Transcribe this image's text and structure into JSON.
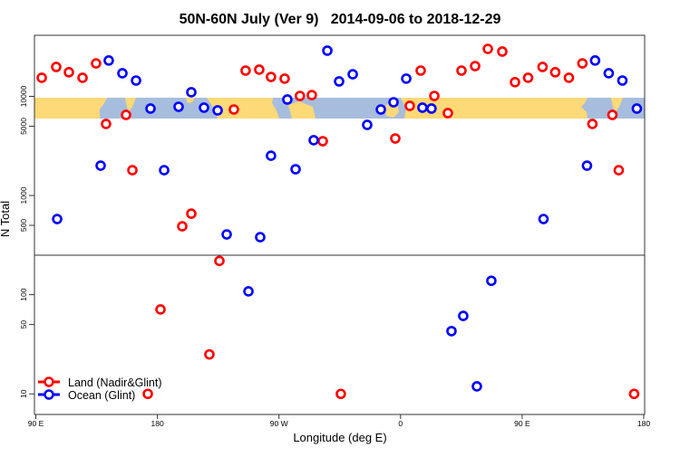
{
  "chart_data": {
    "type": "scatter",
    "title": "50N-60N July (Ver 9)   2014-09-06 to 2018-12-29",
    "xlabel": "Longitude (deg E)",
    "ylabel": "N Total",
    "x_range_deg": [
      90,
      540
    ],
    "x_ticks": [
      {
        "lon": 90,
        "label": "90 E"
      },
      {
        "lon": 180,
        "label": "180"
      },
      {
        "lon": 270,
        "label": "90 W"
      },
      {
        "lon": 360,
        "label": "0"
      },
      {
        "lon": 450,
        "label": "90 E"
      },
      {
        "lon": 540,
        "label": "180"
      }
    ],
    "y_scale": "log",
    "panels": {
      "upper": {
        "ylim": [
          250,
          41300
        ],
        "ticks": [
          {
            "v": 500,
            "label": "500"
          },
          {
            "v": 1000,
            "label": "1000"
          },
          {
            "v": 5000,
            "label": "5000"
          },
          {
            "v": 10000,
            "label": "10000"
          }
        ]
      },
      "lower": {
        "ylim": [
          6.2,
          250
        ],
        "ticks": [
          {
            "v": 10,
            "label": "10"
          },
          {
            "v": 50,
            "label": "50"
          },
          {
            "v": 100,
            "label": "100"
          }
        ]
      }
    },
    "legend_position": "bottom-left",
    "series": [
      {
        "name": "Land (Nadir&Glint)",
        "color": "#ff0000",
        "points": [
          [
            94.4,
            15400
          ],
          [
            105.1,
            19800
          ],
          [
            114.5,
            17500
          ],
          [
            124.6,
            15400
          ],
          [
            134.6,
            21500
          ],
          [
            142.0,
            5270
          ],
          [
            156.8,
            6500
          ],
          [
            161.5,
            1800
          ],
          [
            172.9,
            10
          ],
          [
            -177.7,
            71
          ],
          [
            -161.6,
            489
          ],
          [
            -154.9,
            656
          ],
          [
            -141.5,
            25
          ],
          [
            -134.1,
            219
          ],
          [
            -123.4,
            7370
          ],
          [
            -114.7,
            18200
          ],
          [
            -104.6,
            18600
          ],
          [
            -95.9,
            15700
          ],
          [
            -85.8,
            15100
          ],
          [
            -74.5,
            10100
          ],
          [
            -65.7,
            10300
          ],
          [
            -57.6,
            3530
          ],
          [
            -44.2,
            10
          ],
          [
            -3.9,
            3760
          ],
          [
            6.8,
            8020
          ],
          [
            14.9,
            18200
          ],
          [
            25.0,
            10100
          ],
          [
            35.0,
            6780
          ],
          [
            45.1,
            18200
          ],
          [
            55.2,
            20200
          ],
          [
            64.6,
            30100
          ],
          [
            75.3,
            28300
          ],
          [
            84.7,
            13900
          ]
        ]
      },
      {
        "name": "Ocean (Glint)",
        "color": "#0000ff",
        "points": [
          [
            105.8,
            579
          ],
          [
            138.0,
            2000
          ],
          [
            144.0,
            23000
          ],
          [
            154.1,
            17100
          ],
          [
            164.2,
            14440
          ],
          [
            174.9,
            7530
          ],
          [
            -175.0,
            1800
          ],
          [
            -164.3,
            7850
          ],
          [
            -154.9,
            11000
          ],
          [
            -145.5,
            7690
          ],
          [
            -135.4,
            7220
          ],
          [
            -128.7,
            405
          ],
          [
            -112.6,
            108
          ],
          [
            -103.9,
            380
          ],
          [
            -95.9,
            2520
          ],
          [
            -83.8,
            9290
          ],
          [
            -77.7,
            1840
          ],
          [
            -64.3,
            3610
          ],
          [
            -54.2,
            28900
          ],
          [
            -45.5,
            14150
          ],
          [
            -35.4,
            16700
          ],
          [
            -24.7,
            5160
          ],
          [
            -14.6,
            7370
          ],
          [
            -5.2,
            8720
          ],
          [
            4.2,
            15100
          ],
          [
            16.2,
            7690
          ],
          [
            22.9,
            7530
          ],
          [
            37.7,
            42.9
          ],
          [
            46.4,
            61.1
          ],
          [
            56.5,
            11.9
          ],
          [
            67.2,
            138
          ]
        ]
      }
    ]
  }
}
